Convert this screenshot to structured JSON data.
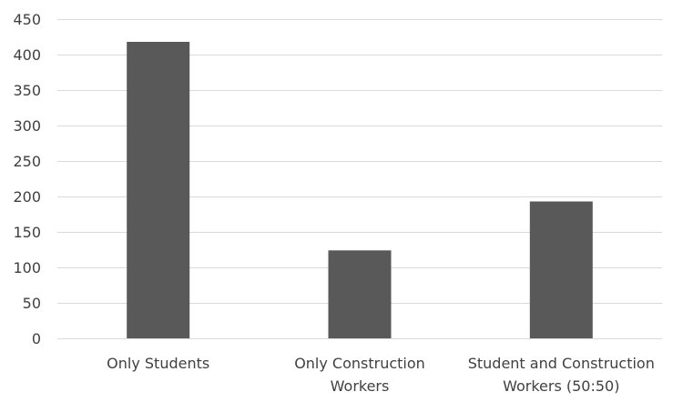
{
  "chart_data": {
    "type": "bar",
    "title": "",
    "xlabel": "",
    "ylabel": "",
    "categories": [
      [
        "Only Students"
      ],
      [
        "Only Construction",
        "Workers"
      ],
      [
        "Student and Construction",
        "Workers (50:50)"
      ]
    ],
    "values": [
      418,
      124,
      193
    ],
    "ylim": [
      0,
      450
    ],
    "yticks": [
      0,
      50,
      100,
      150,
      200,
      250,
      300,
      350,
      400,
      450
    ],
    "grid": true,
    "legend": "none",
    "bar_color": "#595959",
    "grid_color": "#d9d9d9",
    "text_color": "#404040"
  }
}
